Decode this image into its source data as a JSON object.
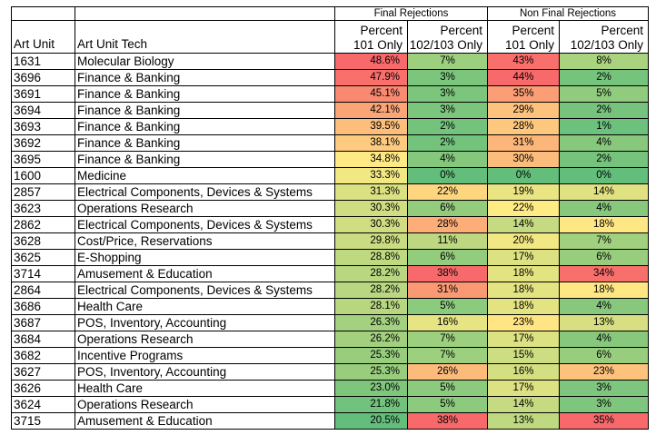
{
  "headers": {
    "group_final": "Final Rejections",
    "group_nonfinal": "Non Final Rejections",
    "art_unit": "Art Unit",
    "art_unit_tech": "Art Unit Tech",
    "percent": "Percent",
    "only_101": "101 Only",
    "only_102_103": "102/103 Only"
  },
  "rows": [
    {
      "unit": "1631",
      "tech": "Molecular Biology",
      "f101": "48.6%",
      "f102": "7%",
      "n101": "43%",
      "n102": "8%"
    },
    {
      "unit": "3696",
      "tech": "Finance & Banking",
      "f101": "47.9%",
      "f102": "3%",
      "n101": "44%",
      "n102": "2%"
    },
    {
      "unit": "3691",
      "tech": "Finance & Banking",
      "f101": "45.1%",
      "f102": "3%",
      "n101": "35%",
      "n102": "5%"
    },
    {
      "unit": "3694",
      "tech": "Finance & Banking",
      "f101": "42.1%",
      "f102": "3%",
      "n101": "29%",
      "n102": "2%"
    },
    {
      "unit": "3693",
      "tech": "Finance & Banking",
      "f101": "39.5%",
      "f102": "2%",
      "n101": "28%",
      "n102": "1%"
    },
    {
      "unit": "3692",
      "tech": "Finance & Banking",
      "f101": "38.1%",
      "f102": "2%",
      "n101": "31%",
      "n102": "4%"
    },
    {
      "unit": "3695",
      "tech": "Finance & Banking",
      "f101": "34.8%",
      "f102": "4%",
      "n101": "30%",
      "n102": "2%"
    },
    {
      "unit": "1600",
      "tech": "Medicine",
      "f101": "33.3%",
      "f102": "0%",
      "n101": "0%",
      "n102": "0%"
    },
    {
      "unit": "2857",
      "tech": "Electrical Components, Devices & Systems",
      "f101": "31.3%",
      "f102": "22%",
      "n101": "19%",
      "n102": "14%"
    },
    {
      "unit": "3623",
      "tech": "Operations Research",
      "f101": "30.3%",
      "f102": "6%",
      "n101": "22%",
      "n102": "4%"
    },
    {
      "unit": "2862",
      "tech": "Electrical Components, Devices & Systems",
      "f101": "30.3%",
      "f102": "28%",
      "n101": "14%",
      "n102": "18%"
    },
    {
      "unit": "3628",
      "tech": "Cost/Price, Reservations",
      "f101": "29.8%",
      "f102": "11%",
      "n101": "20%",
      "n102": "7%"
    },
    {
      "unit": "3625",
      "tech": "E-Shopping",
      "f101": "28.8%",
      "f102": "6%",
      "n101": "17%",
      "n102": "6%"
    },
    {
      "unit": "3714",
      "tech": "Amusement & Education",
      "f101": "28.2%",
      "f102": "38%",
      "n101": "18%",
      "n102": "34%"
    },
    {
      "unit": "2864",
      "tech": "Electrical Components, Devices & Systems",
      "f101": "28.2%",
      "f102": "31%",
      "n101": "18%",
      "n102": "18%"
    },
    {
      "unit": "3686",
      "tech": "Health Care",
      "f101": "28.1%",
      "f102": "5%",
      "n101": "18%",
      "n102": "4%"
    },
    {
      "unit": "3687",
      "tech": "POS, Inventory, Accounting",
      "f101": "26.3%",
      "f102": "16%",
      "n101": "23%",
      "n102": "13%"
    },
    {
      "unit": "3684",
      "tech": "Operations Research",
      "f101": "26.2%",
      "f102": "7%",
      "n101": "17%",
      "n102": "4%"
    },
    {
      "unit": "3682",
      "tech": "Incentive Programs",
      "f101": "25.3%",
      "f102": "7%",
      "n101": "15%",
      "n102": "6%"
    },
    {
      "unit": "3627",
      "tech": "POS, Inventory, Accounting",
      "f101": "25.3%",
      "f102": "26%",
      "n101": "16%",
      "n102": "23%"
    },
    {
      "unit": "3626",
      "tech": "Health Care",
      "f101": "23.0%",
      "f102": "5%",
      "n101": "17%",
      "n102": "3%"
    },
    {
      "unit": "3624",
      "tech": "Operations Research",
      "f101": "21.8%",
      "f102": "5%",
      "n101": "14%",
      "n102": "3%"
    },
    {
      "unit": "3715",
      "tech": "Amusement & Education",
      "f101": "20.5%",
      "f102": "38%",
      "n101": "13%",
      "n102": "35%"
    }
  ],
  "color_scale": {
    "low": "#63be7b",
    "mid": "#ffeb84",
    "high": "#f8696b",
    "orientation": "101 columns: high=red, low=green; 102/103 columns: high=red, low=green"
  }
}
